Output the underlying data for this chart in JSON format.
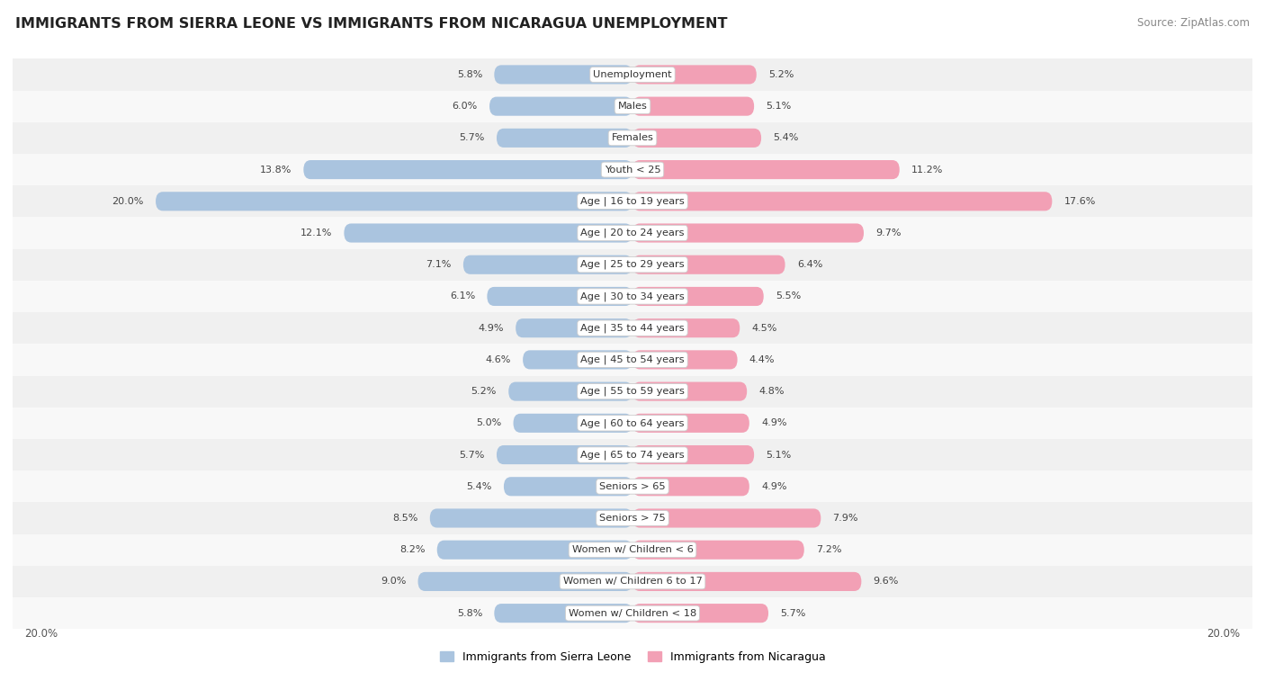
{
  "title": "IMMIGRANTS FROM SIERRA LEONE VS IMMIGRANTS FROM NICARAGUA UNEMPLOYMENT",
  "source": "Source: ZipAtlas.com",
  "categories": [
    "Unemployment",
    "Males",
    "Females",
    "Youth < 25",
    "Age | 16 to 19 years",
    "Age | 20 to 24 years",
    "Age | 25 to 29 years",
    "Age | 30 to 34 years",
    "Age | 35 to 44 years",
    "Age | 45 to 54 years",
    "Age | 55 to 59 years",
    "Age | 60 to 64 years",
    "Age | 65 to 74 years",
    "Seniors > 65",
    "Seniors > 75",
    "Women w/ Children < 6",
    "Women w/ Children 6 to 17",
    "Women w/ Children < 18"
  ],
  "sierra_leone": [
    5.8,
    6.0,
    5.7,
    13.8,
    20.0,
    12.1,
    7.1,
    6.1,
    4.9,
    4.6,
    5.2,
    5.0,
    5.7,
    5.4,
    8.5,
    8.2,
    9.0,
    5.8
  ],
  "nicaragua": [
    5.2,
    5.1,
    5.4,
    11.2,
    17.6,
    9.7,
    6.4,
    5.5,
    4.5,
    4.4,
    4.8,
    4.9,
    5.1,
    4.9,
    7.9,
    7.2,
    9.6,
    5.7
  ],
  "max_val": 20.0,
  "bar_color_sl": "#aac4df",
  "bar_color_nc": "#f2a0b5",
  "row_color_light": "#efefef",
  "row_color_dark": "#e6e6e6",
  "title_fontsize": 11.5,
  "label_fontsize": 8.0,
  "category_fontsize": 8.2,
  "source_fontsize": 8.5
}
